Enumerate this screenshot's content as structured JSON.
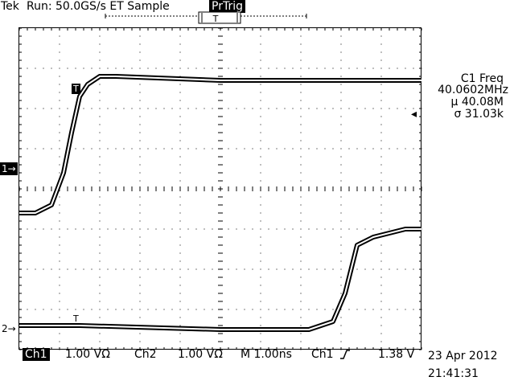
{
  "header": {
    "brand": "Tek",
    "status": "Run: 50.0GS/s ET Sample",
    "trigger_badge": "PrTrig",
    "trigger_window_marker": "T"
  },
  "measurement": {
    "title": "C1 Freq",
    "value": "40.0602MHz",
    "mean": "µ 40.08M",
    "sigma": "σ 31.03k",
    "sigma_symbol_name": "sigma"
  },
  "markers": {
    "ch1": "1→",
    "ch2": "2→",
    "trigger_level_arrow": "◂",
    "trigger_point": "T",
    "ch2_trigger_point": "T"
  },
  "footer": {
    "ch1_label": "Ch1",
    "ch1_scale": "1.00 VΩ",
    "ch2_label": "Ch2",
    "ch2_scale": "1.00 VΩ",
    "timebase": "M 1.00ns",
    "trigger_source": "Ch1",
    "trigger_slope_icon": "rising-edge-icon",
    "trigger_level": "1.38 V",
    "date": "23 Apr 2012",
    "time": "21:41:31"
  },
  "colors": {
    "background": "#ffffff",
    "trace": "#000000",
    "graticule": "#000000"
  },
  "chart_data": [
    {
      "type": "line",
      "title": "",
      "xlabel": "",
      "ylabel": "",
      "series": [
        {
          "name": "Ch1",
          "x_ns": [
            -5.0,
            -4.6,
            -4.2,
            -3.9,
            -3.7,
            -3.5,
            -3.3,
            -3.0,
            -2.6,
            0.0,
            5.0
          ],
          "y_div": [
            -0.6,
            -0.6,
            -0.4,
            0.4,
            1.4,
            2.3,
            2.6,
            2.8,
            2.8,
            2.7,
            2.7
          ]
        },
        {
          "name": "Ch2",
          "x_ns": [
            -5.0,
            -3.5,
            0.0,
            1.0,
            2.2,
            2.8,
            3.1,
            3.4,
            3.8,
            4.6,
            5.0
          ],
          "y_div": [
            -3.4,
            -3.4,
            -3.5,
            -3.5,
            -3.5,
            -3.3,
            -2.6,
            -1.4,
            -1.2,
            -1.0,
            -1.0
          ]
        }
      ],
      "x_range_ns": [
        -5,
        5
      ],
      "y_range_div": [
        -4,
        4
      ],
      "grid": true
    }
  ]
}
